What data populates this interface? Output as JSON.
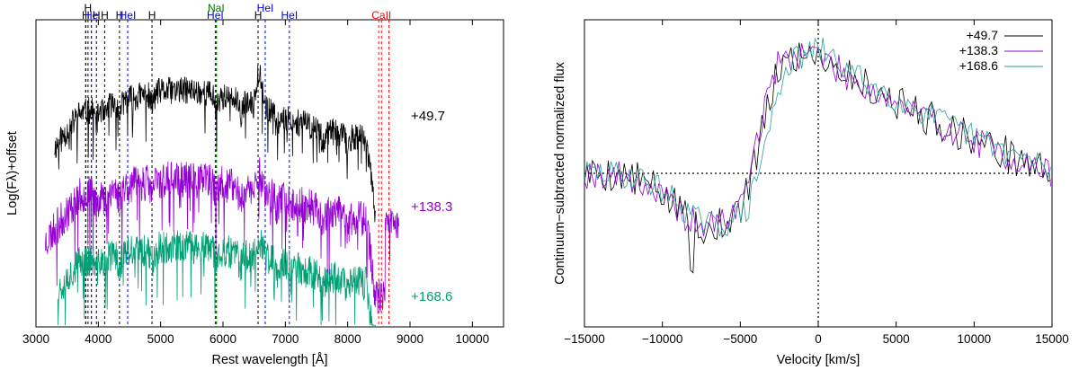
{
  "chart_data": [
    {
      "type": "line",
      "id": "left",
      "xlabel": "Rest wavelength [Å]",
      "ylabel": "Log(Fλ)+offset",
      "xlim": [
        3000,
        10500
      ],
      "ylim": [
        0,
        1
      ],
      "xticks": [
        3000,
        4000,
        5000,
        6000,
        7000,
        8000,
        9000,
        10000
      ],
      "series": [
        {
          "name": "+49.7",
          "color": "#000000",
          "range": [
            3300,
            8450
          ],
          "base": 0.66,
          "amp": 0.11,
          "noise": 0.045,
          "seed": 11
        },
        {
          "name": "+138.3",
          "color": "#9400d3",
          "range": [
            3150,
            8820
          ],
          "base": 0.4,
          "amp": 0.08,
          "noise": 0.06,
          "seed": 23
        },
        {
          "name": "+168.6",
          "color": "#009e73",
          "range": [
            3350,
            8450
          ],
          "base": 0.19,
          "amp": 0.07,
          "noise": 0.055,
          "seed": 37
        }
      ],
      "line_markers": [
        {
          "label": "H",
          "wavelength": 3798,
          "color": "#000000",
          "row": 2
        },
        {
          "label": "H",
          "wavelength": 3835,
          "color": "#000000",
          "row": 1
        },
        {
          "label": "H",
          "wavelength": 3970,
          "color": "#000000",
          "row": 2
        },
        {
          "label": "He",
          "wavelength": 3889,
          "color": "#0000ee",
          "row": 2
        },
        {
          "label": "H",
          "wavelength": 4102,
          "color": "#000000",
          "row": 2
        },
        {
          "label": "H",
          "wavelength": 4340,
          "color": "#000000",
          "row": 3
        },
        {
          "label": "HeI",
          "wavelength": 4471,
          "color": "#0000ee",
          "row": 3
        },
        {
          "label": "H",
          "wavelength": 4861,
          "color": "#000000",
          "row": 2
        },
        {
          "label": "NaI",
          "wavelength": 5890,
          "color": "#007000",
          "row": 1
        },
        {
          "label": "HeI",
          "wavelength": 5876,
          "color": "#0000ee",
          "row": 2
        },
        {
          "label": "H",
          "wavelength": 6563,
          "color": "#000000",
          "row": 2
        },
        {
          "label": "HeI",
          "wavelength": 6678,
          "color": "#0000ee",
          "row": 1
        },
        {
          "label": "HeI",
          "wavelength": 7065,
          "color": "#0000ee",
          "row": 2
        },
        {
          "label": "CaII",
          "wavelength": 8542,
          "color": "#ff0000",
          "row": 2
        }
      ],
      "extra_lines": [
        {
          "wavelength": 3889,
          "color": "#0000ee"
        },
        {
          "wavelength": 3798,
          "color": "#000000"
        },
        {
          "wavelength": 5896,
          "color": "#007000"
        },
        {
          "wavelength": 8498,
          "color": "#ff0000"
        },
        {
          "wavelength": 8662,
          "color": "#ff0000"
        }
      ]
    },
    {
      "type": "line",
      "id": "right",
      "xlabel": "Velocity [km/s]",
      "ylabel": "Continuum−subtracted normalized flux",
      "xlim": [
        -15000,
        15000
      ],
      "ylim": [
        0,
        1
      ],
      "xticks": [
        -15000,
        -10000,
        -5000,
        0,
        5000,
        10000,
        15000
      ],
      "zero_level": 0.5,
      "legend_position": "top-right",
      "series": [
        {
          "name": "+49.7",
          "color": "#000000",
          "seed": 5,
          "noise": 0.06
        },
        {
          "name": "+138.3",
          "color": "#9400d3",
          "seed": 19,
          "noise": 0.05
        },
        {
          "name": "+168.6",
          "color": "#2aa198",
          "seed": 29,
          "noise": 0.045
        }
      ]
    }
  ],
  "title_markers": {
    "h1": "H",
    "h2": "H",
    "h3": "H",
    "h4": "H",
    "hei1": "HeI",
    "hei2": "HeI",
    "hei3": "HeI",
    "hei4": "HeI",
    "hei5": "HeI",
    "nai": "NaI",
    "caii": "CaII",
    "h5": "H",
    "h6": "H",
    "h7": "H"
  }
}
